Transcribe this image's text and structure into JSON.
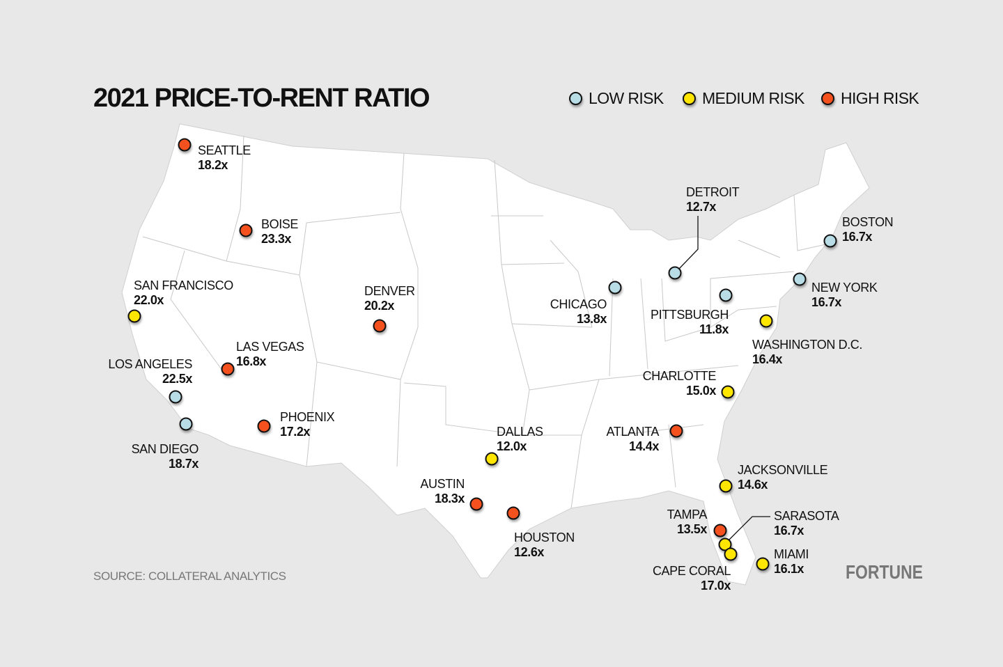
{
  "title": "2021 PRICE-TO-RENT RATIO",
  "legend": [
    {
      "label": "LOW RISK",
      "risk": "low"
    },
    {
      "label": "MEDIUM RISK",
      "risk": "medium"
    },
    {
      "label": "HIGH RISK",
      "risk": "high"
    }
  ],
  "colors": {
    "low": "#b9dde6",
    "medium": "#ffe600",
    "high": "#f4511e",
    "land": "#ffffff",
    "background": "#e8e8e8"
  },
  "cities": [
    {
      "name": "SEATTLE",
      "value": "18.2x",
      "risk": "high"
    },
    {
      "name": "BOISE",
      "value": "23.3x",
      "risk": "high"
    },
    {
      "name": "SAN FRANCISCO",
      "value": "22.0x",
      "risk": "medium"
    },
    {
      "name": "DENVER",
      "value": "20.2x",
      "risk": "high"
    },
    {
      "name": "LAS VEGAS",
      "value": "16.8x",
      "risk": "high"
    },
    {
      "name": "LOS ANGELES",
      "value": "22.5x",
      "risk": "low"
    },
    {
      "name": "SAN DIEGO",
      "value": "18.7x",
      "risk": "low"
    },
    {
      "name": "PHOENIX",
      "value": "17.2x",
      "risk": "high"
    },
    {
      "name": "DALLAS",
      "value": "12.0x",
      "risk": "medium"
    },
    {
      "name": "AUSTIN",
      "value": "18.3x",
      "risk": "high"
    },
    {
      "name": "HOUSTON",
      "value": "12.6x",
      "risk": "high"
    },
    {
      "name": "CHICAGO",
      "value": "13.8x",
      "risk": "low"
    },
    {
      "name": "DETROIT",
      "value": "12.7x",
      "risk": "low"
    },
    {
      "name": "PITTSBURGH",
      "value": "11.8x",
      "risk": "low"
    },
    {
      "name": "BOSTON",
      "value": "16.7x",
      "risk": "low"
    },
    {
      "name": "NEW YORK",
      "value": "16.7x",
      "risk": "low"
    },
    {
      "name": "WASHINGTON D.C.",
      "value": "16.4x",
      "risk": "medium"
    },
    {
      "name": "CHARLOTTE",
      "value": "15.0x",
      "risk": "medium"
    },
    {
      "name": "ATLANTA",
      "value": "14.4x",
      "risk": "high"
    },
    {
      "name": "JACKSONVILLE",
      "value": "14.6x",
      "risk": "medium"
    },
    {
      "name": "TAMPA",
      "value": "13.5x",
      "risk": "high"
    },
    {
      "name": "SARASOTA",
      "value": "16.7x",
      "risk": "medium"
    },
    {
      "name": "CAPE CORAL",
      "value": "17.0x",
      "risk": "medium"
    },
    {
      "name": "MIAMI",
      "value": "16.1x",
      "risk": "medium"
    }
  ],
  "source": "SOURCE: COLLATERAL ANALYTICS",
  "brand": "FORTUNE"
}
